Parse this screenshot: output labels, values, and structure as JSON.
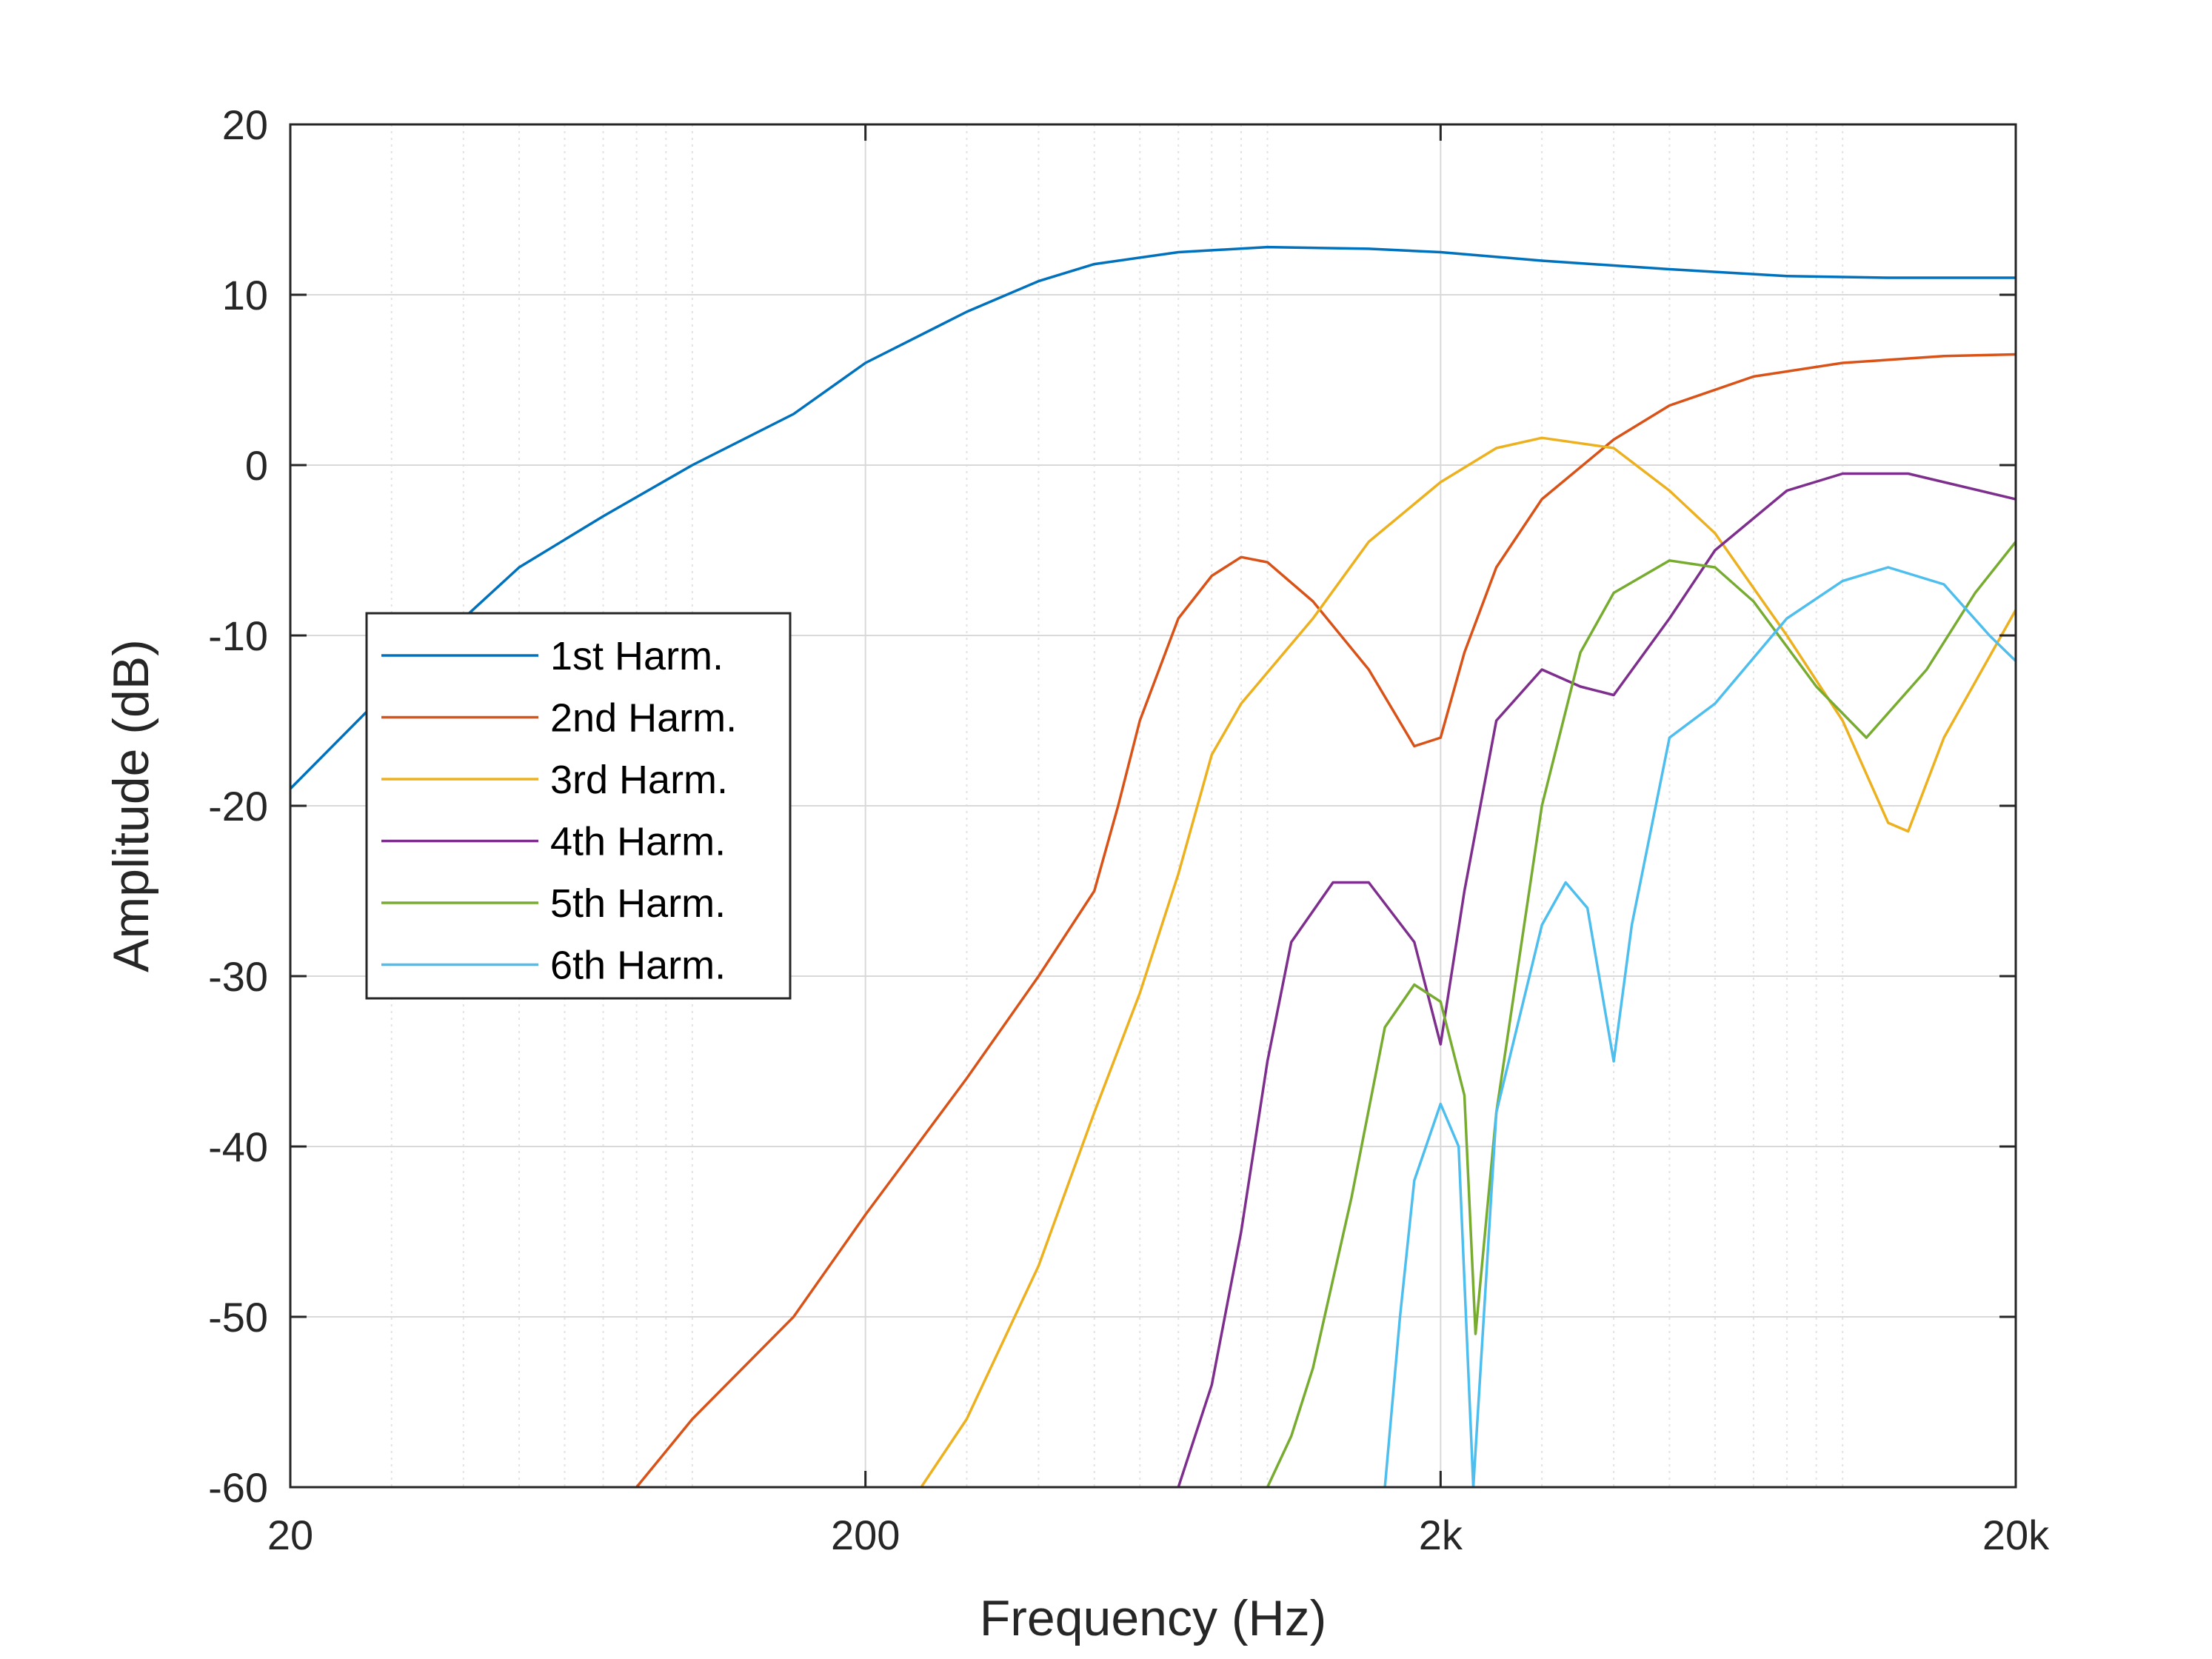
{
  "chart_data": {
    "type": "line",
    "title": "",
    "xlabel": "Frequency (Hz)",
    "ylabel": "Amplitude (dB)",
    "xscale": "log",
    "xlim": [
      20,
      20000
    ],
    "ylim": [
      -60,
      20
    ],
    "grid": "on",
    "minor_grid_x": "on",
    "legend_placement": "left",
    "xticks": [
      {
        "value": 20,
        "label": "20"
      },
      {
        "value": 200,
        "label": "200"
      },
      {
        "value": 2000,
        "label": "2k"
      },
      {
        "value": 20000,
        "label": "20k"
      }
    ],
    "yticks": [
      {
        "value": 20,
        "label": "20"
      },
      {
        "value": 10,
        "label": "10"
      },
      {
        "value": 0,
        "label": "0"
      },
      {
        "value": -10,
        "label": "-10"
      },
      {
        "value": -20,
        "label": "-20"
      },
      {
        "value": -30,
        "label": "-30"
      },
      {
        "value": -40,
        "label": "-40"
      },
      {
        "value": -50,
        "label": "-50"
      },
      {
        "value": -60,
        "label": "-60"
      }
    ],
    "series": [
      {
        "name": "1st Harm.",
        "color": "#0072BD",
        "points": [
          [
            20,
            -19
          ],
          [
            30,
            -13
          ],
          [
            40,
            -9
          ],
          [
            50,
            -6
          ],
          [
            70,
            -3
          ],
          [
            100,
            0
          ],
          [
            150,
            3
          ],
          [
            200,
            6
          ],
          [
            300,
            9
          ],
          [
            400,
            10.8
          ],
          [
            500,
            11.8
          ],
          [
            700,
            12.5
          ],
          [
            1000,
            12.8
          ],
          [
            1500,
            12.7
          ],
          [
            2000,
            12.5
          ],
          [
            3000,
            12
          ],
          [
            5000,
            11.5
          ],
          [
            8000,
            11.1
          ],
          [
            12000,
            11
          ],
          [
            20000,
            11
          ]
        ]
      },
      {
        "name": "2nd Harm.",
        "color": "#D95319",
        "points": [
          [
            80,
            -60
          ],
          [
            100,
            -56
          ],
          [
            150,
            -50
          ],
          [
            200,
            -44
          ],
          [
            300,
            -36
          ],
          [
            400,
            -30
          ],
          [
            500,
            -25
          ],
          [
            550,
            -20
          ],
          [
            600,
            -15
          ],
          [
            700,
            -9
          ],
          [
            800,
            -6.5
          ],
          [
            900,
            -5.4
          ],
          [
            1000,
            -5.7
          ],
          [
            1200,
            -8
          ],
          [
            1500,
            -12
          ],
          [
            1800,
            -16.5
          ],
          [
            2000,
            -16
          ],
          [
            2200,
            -11
          ],
          [
            2500,
            -6
          ],
          [
            3000,
            -2
          ],
          [
            4000,
            1.5
          ],
          [
            5000,
            3.5
          ],
          [
            7000,
            5.2
          ],
          [
            10000,
            6
          ],
          [
            15000,
            6.4
          ],
          [
            20000,
            6.5
          ]
        ]
      },
      {
        "name": "3rd Harm.",
        "color": "#EDB120",
        "points": [
          [
            250,
            -60
          ],
          [
            300,
            -56
          ],
          [
            400,
            -47
          ],
          [
            500,
            -38
          ],
          [
            600,
            -31
          ],
          [
            700,
            -24
          ],
          [
            800,
            -17
          ],
          [
            900,
            -14
          ],
          [
            1200,
            -9
          ],
          [
            1500,
            -4.5
          ],
          [
            2000,
            -1
          ],
          [
            2500,
            1
          ],
          [
            3000,
            1.6
          ],
          [
            4000,
            1
          ],
          [
            5000,
            -1.5
          ],
          [
            6000,
            -4
          ],
          [
            8000,
            -10
          ],
          [
            10000,
            -15
          ],
          [
            12000,
            -21
          ],
          [
            13000,
            -21.5
          ],
          [
            15000,
            -16
          ],
          [
            20000,
            -8.5
          ]
        ]
      },
      {
        "name": "4th Harm.",
        "color": "#7E2F8E",
        "points": [
          [
            700,
            -60
          ],
          [
            800,
            -54
          ],
          [
            900,
            -45
          ],
          [
            1000,
            -35
          ],
          [
            1100,
            -28
          ],
          [
            1300,
            -24.5
          ],
          [
            1500,
            -24.5
          ],
          [
            1800,
            -28
          ],
          [
            2000,
            -34
          ],
          [
            2200,
            -25
          ],
          [
            2500,
            -15
          ],
          [
            3000,
            -12
          ],
          [
            3500,
            -13
          ],
          [
            4000,
            -13.5
          ],
          [
            5000,
            -9
          ],
          [
            6000,
            -5
          ],
          [
            8000,
            -1.5
          ],
          [
            10000,
            -0.5
          ],
          [
            13000,
            -0.5
          ],
          [
            20000,
            -2
          ]
        ]
      },
      {
        "name": "5th Harm.",
        "color": "#77AC30",
        "points": [
          [
            1000,
            -60
          ],
          [
            1100,
            -57
          ],
          [
            1200,
            -53
          ],
          [
            1400,
            -43
          ],
          [
            1600,
            -33
          ],
          [
            1800,
            -30.5
          ],
          [
            2000,
            -31.5
          ],
          [
            2200,
            -37
          ],
          [
            2300,
            -51
          ],
          [
            2500,
            -38
          ],
          [
            3000,
            -20
          ],
          [
            3500,
            -11
          ],
          [
            4000,
            -7.5
          ],
          [
            5000,
            -5.6
          ],
          [
            6000,
            -6
          ],
          [
            7000,
            -8
          ],
          [
            9000,
            -13
          ],
          [
            11000,
            -16
          ],
          [
            14000,
            -12
          ],
          [
            17000,
            -7.5
          ],
          [
            20000,
            -4.5
          ]
        ]
      },
      {
        "name": "6th Harm.",
        "color": "#4DBEEE",
        "points": [
          [
            1600,
            -60
          ],
          [
            1700,
            -50
          ],
          [
            1800,
            -42
          ],
          [
            2000,
            -37.5
          ],
          [
            2150,
            -40
          ],
          [
            2280,
            -60
          ],
          [
            2500,
            -38
          ],
          [
            3000,
            -27
          ],
          [
            3300,
            -24.5
          ],
          [
            3600,
            -26
          ],
          [
            4000,
            -35
          ],
          [
            4300,
            -27
          ],
          [
            5000,
            -16
          ],
          [
            6000,
            -14
          ],
          [
            8000,
            -9
          ],
          [
            10000,
            -6.8
          ],
          [
            12000,
            -6
          ],
          [
            15000,
            -7
          ],
          [
            18000,
            -10
          ],
          [
            20000,
            -11.5
          ]
        ]
      }
    ]
  }
}
